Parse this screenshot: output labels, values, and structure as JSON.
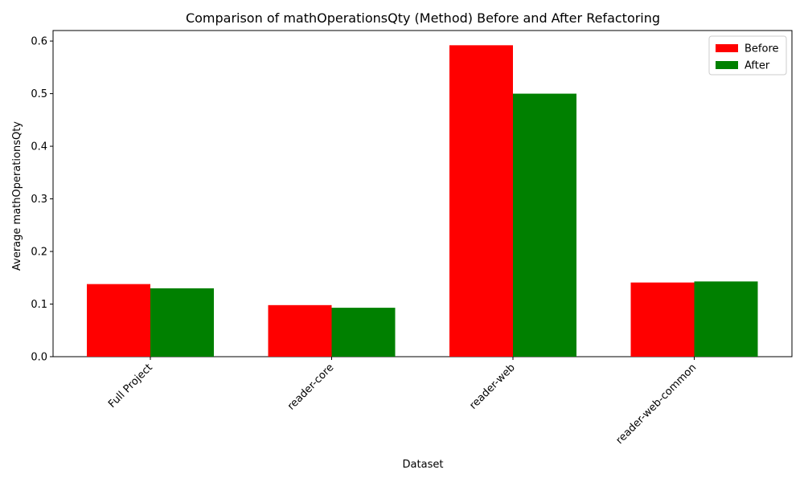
{
  "chart_data": {
    "type": "bar",
    "title": "Comparison of mathOperationsQty (Method) Before and After Refactoring",
    "xlabel": "Dataset",
    "ylabel": "Average mathOperationsQty",
    "categories": [
      "Full Project",
      "reader-core",
      "reader-web",
      "reader-web-common"
    ],
    "series": [
      {
        "name": "Before",
        "color": "#ff0000",
        "values": [
          0.138,
          0.098,
          0.592,
          0.141
        ]
      },
      {
        "name": "After",
        "color": "#008000",
        "values": [
          0.13,
          0.093,
          0.5,
          0.143
        ]
      }
    ],
    "ylim": [
      0,
      0.62
    ],
    "yticks": [
      0.0,
      0.1,
      0.2,
      0.3,
      0.4,
      0.5,
      0.6
    ],
    "ytick_labels": [
      "0.0",
      "0.1",
      "0.2",
      "0.3",
      "0.4",
      "0.5",
      "0.6"
    ],
    "grid": false,
    "legend": "top-right"
  }
}
